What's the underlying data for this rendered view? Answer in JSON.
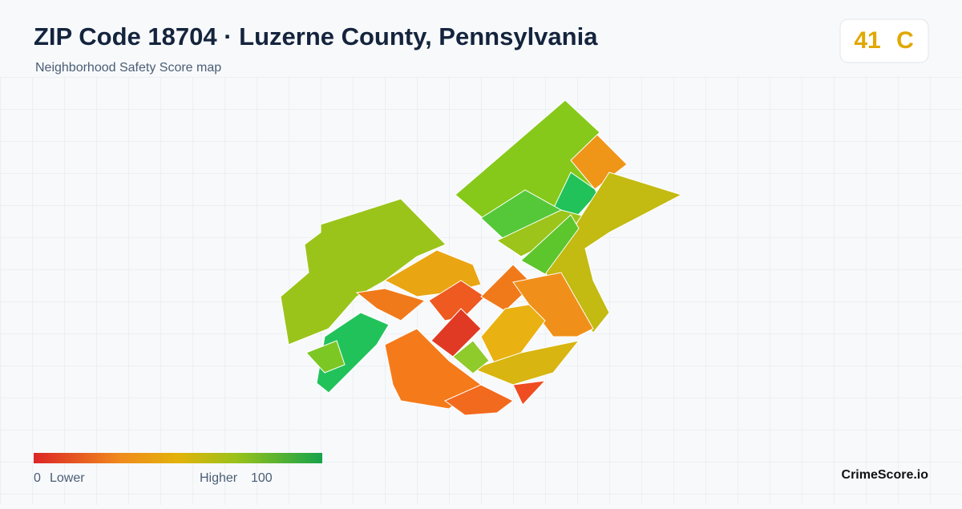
{
  "header": {
    "title": "ZIP Code 18704 · Luzerne County, Pennsylvania",
    "subtitle": "Neighborhood Safety Score map",
    "score": 41,
    "grade": "C"
  },
  "legend": {
    "min": 0,
    "min_label": "Lower",
    "max_label": "Higher",
    "max": 100
  },
  "footer": {
    "brand": "CrimeScore.io"
  }
}
